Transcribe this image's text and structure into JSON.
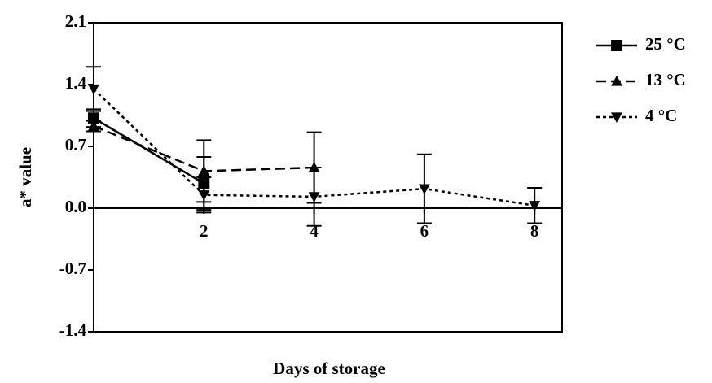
{
  "chart_data": {
    "type": "line",
    "x_label": "Days of storage",
    "y_label": "a* value",
    "x": [
      0,
      2,
      4,
      6,
      8
    ],
    "series": [
      {
        "name": "25 °C",
        "color": "#000000",
        "marker": "square",
        "line_style": "solid",
        "values": [
          1.02,
          0.28,
          null,
          null,
          null
        ],
        "errors": [
          0.1,
          0.3,
          null,
          null,
          null
        ]
      },
      {
        "name": "13 °C",
        "color": "#000000",
        "marker": "triangle-up",
        "line_style": "dashed",
        "values": [
          0.93,
          0.42,
          0.46,
          null,
          null
        ],
        "errors": [
          0.06,
          0.35,
          0.4,
          null,
          null
        ]
      },
      {
        "name": "4 °C",
        "color": "#000000",
        "marker": "triangle-down",
        "line_style": "dotted",
        "values": [
          1.35,
          0.15,
          0.13,
          0.22,
          0.03
        ],
        "errors": [
          0.25,
          0.2,
          0.33,
          0.39,
          0.2
        ]
      }
    ],
    "xlim": [
      0,
      8.5
    ],
    "xticks": [
      2,
      4,
      6,
      8
    ],
    "ylim": [
      -1.4,
      2.1
    ],
    "yticks": [
      2.1,
      1.4,
      0.7,
      {
        "value": 0,
        "label": "0.0"
      },
      -0.7,
      -1.4
    ],
    "legend": "right"
  }
}
